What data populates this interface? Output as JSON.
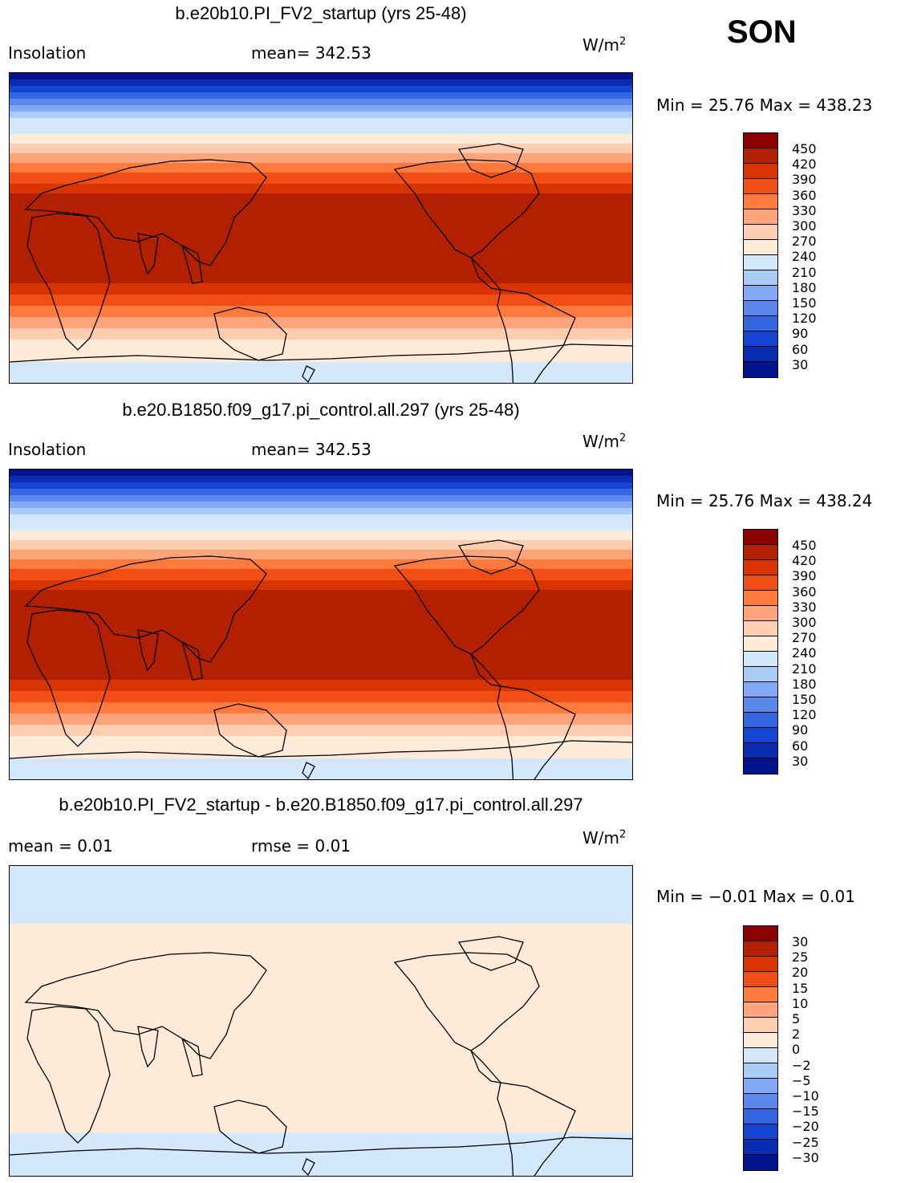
{
  "season": "SON",
  "units_base": "W/m",
  "units_exp": "2",
  "colors_abs": [
    "#8b0000",
    "#b22000",
    "#d83400",
    "#f04e14",
    "#ff7a3c",
    "#ffa47a",
    "#ffcdb0",
    "#ffebd8",
    "#d4e8fc",
    "#aaccf8",
    "#82aaf4",
    "#5a88ec",
    "#3366e0",
    "#1444d4",
    "#0a2cb0",
    "#00128c"
  ],
  "colors_diff": [
    "#8b0000",
    "#b22000",
    "#d83400",
    "#f04e14",
    "#ff7a3c",
    "#ffa47a",
    "#ffcdb0",
    "#ffebd8",
    "#d4e8fc",
    "#aaccf8",
    "#82aaf4",
    "#5a88ec",
    "#3366e0",
    "#1444d4",
    "#0a2cb0",
    "#00128c"
  ],
  "panels": [
    {
      "title": "b.e20b10.PI_FV2_startup (yrs 25-48)",
      "left_label": "Insolation",
      "mid_label": "mean=  342.53",
      "minmax": "Min =   25.76  Max =  438.23",
      "ticks": [
        "450",
        "420",
        "390",
        "360",
        "330",
        "300",
        "270",
        "240",
        "210",
        "180",
        "150",
        "120",
        "90",
        "60",
        "30"
      ]
    },
    {
      "title": "b.e20.B1850.f09_g17.pi_control.all.297 (yrs 25-48)",
      "left_label": "Insolation",
      "mid_label": "mean=  342.53",
      "minmax": "Min =   25.76  Max =  438.24",
      "ticks": [
        "450",
        "420",
        "390",
        "360",
        "330",
        "300",
        "270",
        "240",
        "210",
        "180",
        "150",
        "120",
        "90",
        "60",
        "30"
      ]
    },
    {
      "title": "b.e20b10.PI_FV2_startup - b.e20.B1850.f09_g17.pi_control.all.297",
      "left_label": "mean =    0.01",
      "mid_label": "rmse =    0.01",
      "minmax": "Min =  −0.01  Max =    0.01",
      "ticks": [
        "30",
        "25",
        "20",
        "15",
        "10",
        "5",
        "2",
        "0",
        "−2",
        "−5",
        "−10",
        "−15",
        "−20",
        "−25",
        "−30"
      ]
    }
  ]
}
